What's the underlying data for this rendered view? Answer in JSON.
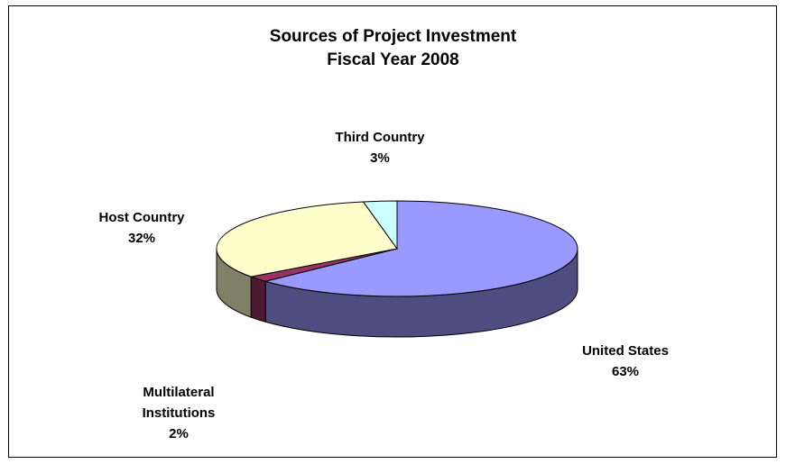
{
  "chart_data": {
    "type": "pie",
    "title": "Sources of Project Investment",
    "subtitle": "Fiscal Year 2008",
    "categories": [
      "United States",
      "Multilateral Institutions",
      "Host Country",
      "Third Country"
    ],
    "values": [
      63,
      2,
      32,
      3
    ],
    "value_labels": [
      "63%",
      "2%",
      "32%",
      "3%"
    ],
    "colors": [
      "#9999ff",
      "#993366",
      "#ffffcc",
      "#ccffff"
    ]
  }
}
